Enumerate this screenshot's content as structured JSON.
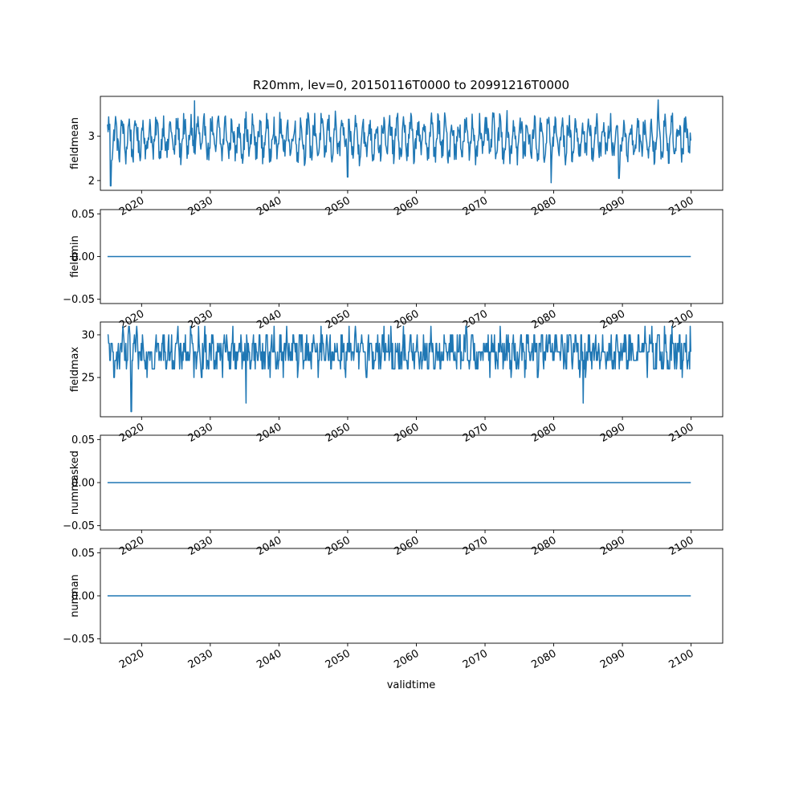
{
  "chart_data": {
    "type": "line",
    "title": "R20mm, lev=0, 20150116T0000 to 20991216T0000",
    "xlabel": "validtime",
    "x_start": "2015-01-16",
    "x_end": "2099-12-16",
    "xlim": [
      2014.0,
      2104.6
    ],
    "x_ticks": [
      2020,
      2030,
      2040,
      2050,
      2060,
      2070,
      2080,
      2090,
      2100
    ],
    "x_tick_labels": [
      "2020",
      "2030",
      "2040",
      "2050",
      "2060",
      "2070",
      "2080",
      "2090",
      "2100"
    ],
    "series_color": "#1f77b4",
    "panels": [
      {
        "ylabel": "fieldmean",
        "ylim": [
          1.78,
          3.9
        ],
        "yticks": [
          2,
          3
        ],
        "ytick_labels": [
          "2",
          "3"
        ],
        "mode": "noisy",
        "mean": 2.95,
        "amp": 0.35,
        "noise": 0.28,
        "min": 1.88,
        "max": 3.82,
        "highlights": [
          {
            "x": 2015.5,
            "y": 1.88
          },
          {
            "x": 2027.7,
            "y": 3.8
          },
          {
            "x": 2050.0,
            "y": 2.08
          },
          {
            "x": 2079.6,
            "y": 1.95
          },
          {
            "x": 2095.2,
            "y": 3.82
          },
          {
            "x": 2089.5,
            "y": 2.05
          }
        ]
      },
      {
        "ylabel": "fieldmin",
        "ylim": [
          -0.055,
          0.055
        ],
        "yticks": [
          -0.05,
          0.0,
          0.05
        ],
        "ytick_labels": [
          "−0.05",
          "0.00",
          "0.05"
        ],
        "mode": "constant",
        "value": 0.0
      },
      {
        "ylabel": "fieldmax",
        "ylim": [
          20.4,
          31.5
        ],
        "yticks": [
          25,
          30
        ],
        "ytick_labels": [
          "25",
          "30"
        ],
        "mode": "noisy-int",
        "mean": 28.0,
        "amp": 1.0,
        "noise": 1.9,
        "min": 21,
        "max": 31,
        "highlights": [
          {
            "x": 2018.5,
            "y": 21
          },
          {
            "x": 2035.2,
            "y": 22
          },
          {
            "x": 2084.3,
            "y": 22
          },
          {
            "x": 2016.0,
            "y": 25
          },
          {
            "x": 2099.9,
            "y": 31
          }
        ]
      },
      {
        "ylabel": "nummasked",
        "ylim": [
          -0.055,
          0.055
        ],
        "yticks": [
          -0.05,
          0.0,
          0.05
        ],
        "ytick_labels": [
          "−0.05",
          "0.00",
          "0.05"
        ],
        "mode": "constant",
        "value": 0.0
      },
      {
        "ylabel": "numnan",
        "ylim": [
          -0.055,
          0.055
        ],
        "yticks": [
          -0.05,
          0.0,
          0.05
        ],
        "ytick_labels": [
          "−0.05",
          "0.00",
          "0.05"
        ],
        "mode": "constant",
        "value": 0.0
      }
    ]
  }
}
